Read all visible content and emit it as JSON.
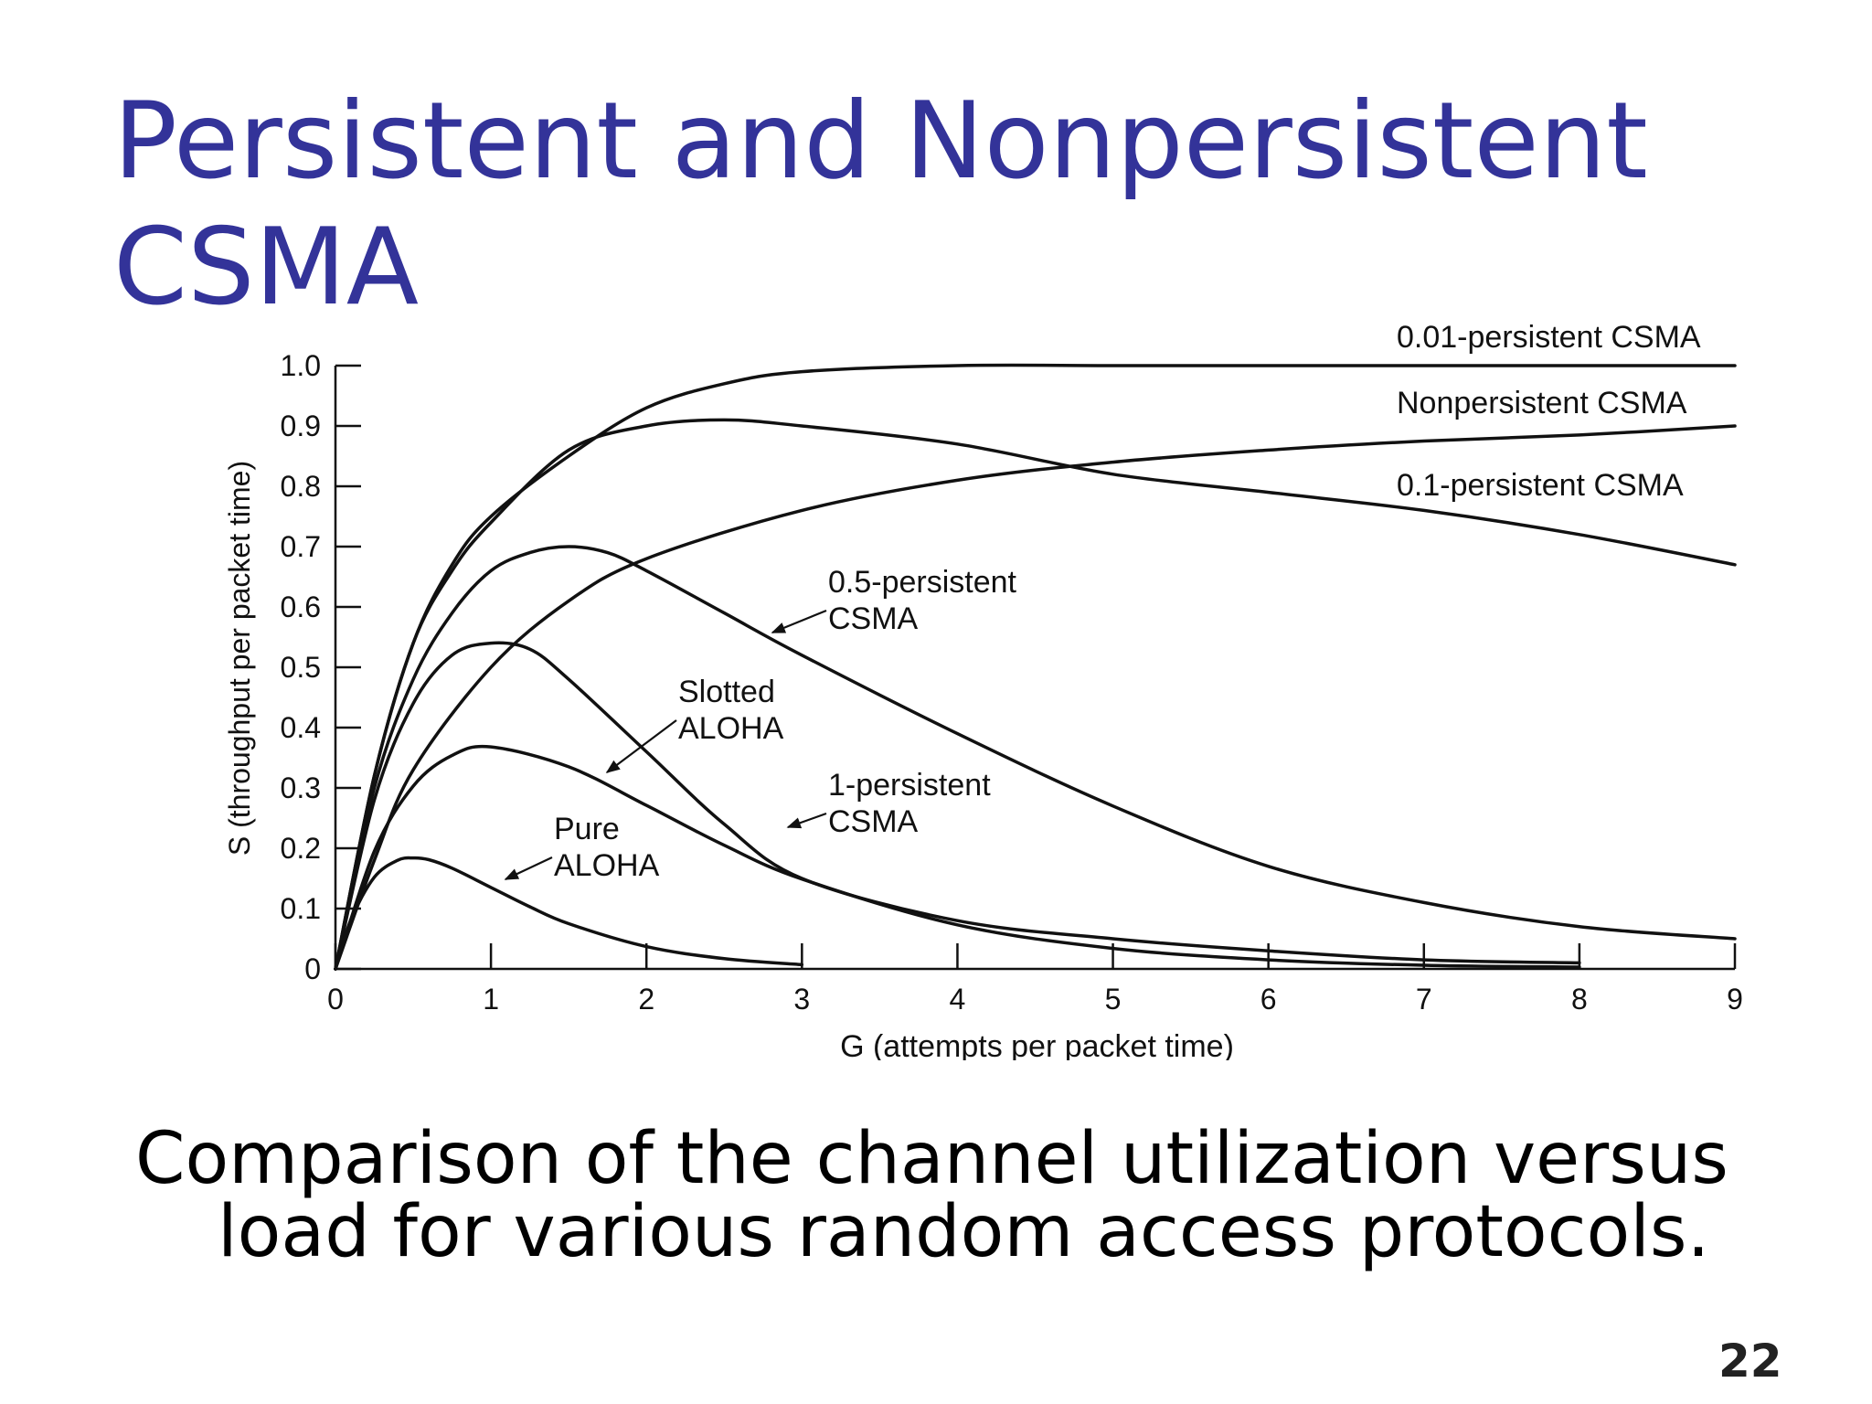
{
  "slide": {
    "title_lines": [
      "Persistent and Nonpersistent",
      "CSMA"
    ],
    "caption_lines": [
      "Comparison of the channel utilization versus",
      "load for various random access protocols."
    ],
    "page_number": "22",
    "title_color": "#333399"
  },
  "chart_data": {
    "type": "line",
    "xlabel": "G (attempts per packet time)",
    "ylabel": "S (throughput per packet time)",
    "xlim": [
      0,
      9
    ],
    "ylim": [
      0,
      1.0
    ],
    "xticks": [
      "0",
      "1",
      "2",
      "3",
      "4",
      "5",
      "6",
      "7",
      "8",
      "9"
    ],
    "yticks": [
      "0",
      "0.1",
      "0.2",
      "0.3",
      "0.4",
      "0.5",
      "0.6",
      "0.7",
      "0.8",
      "0.9",
      "1.0"
    ],
    "grid": false,
    "series": [
      {
        "name": "0.01-persistent CSMA",
        "x": [
          0,
          0.25,
          0.5,
          0.75,
          1,
          1.5,
          2,
          2.5,
          3,
          4,
          5,
          6,
          7,
          8,
          9
        ],
        "y": [
          0,
          0.32,
          0.54,
          0.67,
          0.75,
          0.85,
          0.93,
          0.97,
          0.99,
          1.0,
          1.0,
          1.0,
          1.0,
          1.0,
          1.0
        ]
      },
      {
        "name": "Nonpersistent CSMA",
        "x": [
          0,
          0.25,
          0.5,
          1,
          1.5,
          2,
          3,
          4,
          5,
          6,
          7,
          8,
          9
        ],
        "y": [
          0,
          0.18,
          0.33,
          0.5,
          0.61,
          0.68,
          0.76,
          0.81,
          0.84,
          0.86,
          0.875,
          0.885,
          0.9
        ]
      },
      {
        "name": "0.1-persistent CSMA",
        "x": [
          0,
          0.25,
          0.5,
          0.75,
          1,
          1.5,
          2,
          2.5,
          3,
          4,
          5,
          6,
          7,
          8,
          9
        ],
        "y": [
          0,
          0.32,
          0.54,
          0.66,
          0.74,
          0.86,
          0.9,
          0.91,
          0.9,
          0.87,
          0.82,
          0.79,
          0.76,
          0.72,
          0.67
        ]
      },
      {
        "name": "0.5-persistent CSMA",
        "x": [
          0,
          0.25,
          0.5,
          0.75,
          1,
          1.25,
          1.5,
          1.75,
          2,
          2.5,
          3,
          4,
          5,
          6,
          7,
          8,
          9
        ],
        "y": [
          0,
          0.3,
          0.48,
          0.59,
          0.66,
          0.69,
          0.7,
          0.69,
          0.66,
          0.59,
          0.52,
          0.39,
          0.27,
          0.17,
          0.11,
          0.07,
          0.05
        ]
      },
      {
        "name": "1-persistent CSMA",
        "x": [
          0,
          0.25,
          0.5,
          0.75,
          1,
          1.25,
          1.5,
          2,
          2.5,
          3,
          4,
          5,
          6,
          7,
          8
        ],
        "y": [
          0,
          0.28,
          0.44,
          0.52,
          0.54,
          0.53,
          0.48,
          0.36,
          0.24,
          0.15,
          0.08,
          0.05,
          0.03,
          0.015,
          0.01
        ]
      },
      {
        "name": "Slotted ALOHA",
        "x": [
          0,
          0.25,
          0.5,
          0.75,
          1,
          1.5,
          2,
          2.5,
          3,
          4,
          5,
          6,
          7,
          8
        ],
        "y": [
          0,
          0.195,
          0.303,
          0.354,
          0.368,
          0.335,
          0.271,
          0.205,
          0.149,
          0.073,
          0.034,
          0.015,
          0.006,
          0.003
        ]
      },
      {
        "name": "Pure ALOHA",
        "x": [
          0,
          0.1,
          0.25,
          0.4,
          0.5,
          0.6,
          0.75,
          1,
          1.25,
          1.5,
          2,
          2.5,
          3
        ],
        "y": [
          0,
          0.082,
          0.152,
          0.18,
          0.184,
          0.181,
          0.167,
          0.135,
          0.103,
          0.075,
          0.037,
          0.017,
          0.007
        ]
      }
    ],
    "annotations": [
      {
        "id": "p001",
        "lines": [
          "0.01-persistent CSMA"
        ]
      },
      {
        "id": "nonp",
        "lines": [
          "Nonpersistent CSMA"
        ]
      },
      {
        "id": "p01",
        "lines": [
          "0.1-persistent CSMA"
        ]
      },
      {
        "id": "p05",
        "lines": [
          "0.5-persistent",
          "CSMA"
        ]
      },
      {
        "id": "slot",
        "lines": [
          "Slotted",
          "ALOHA"
        ]
      },
      {
        "id": "p1",
        "lines": [
          "1-persistent",
          "CSMA"
        ]
      },
      {
        "id": "pure",
        "lines": [
          "Pure",
          "ALOHA"
        ]
      }
    ]
  }
}
